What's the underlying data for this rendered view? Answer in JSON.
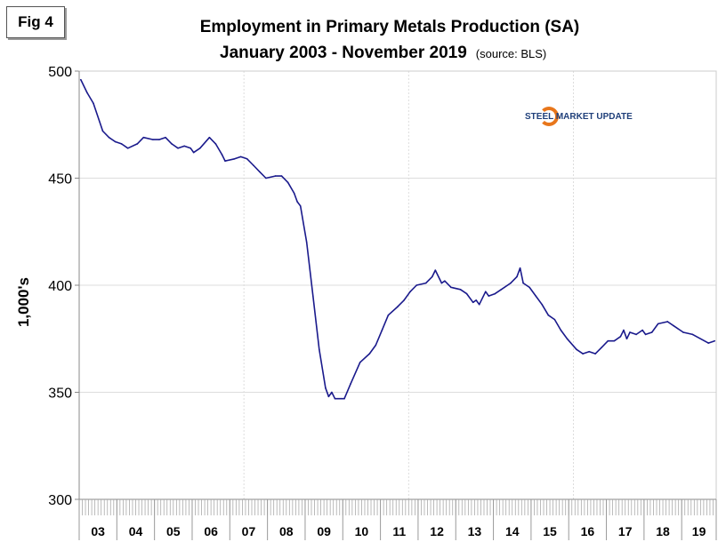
{
  "figure_label": "Fig 4",
  "logo_text": "STEEL MARKET UPDATE",
  "chart_data": {
    "type": "line",
    "title": "Employment in Primary Metals Production (SA)",
    "subtitle": "January 2003 - November 2019",
    "source": "(source: BLS)",
    "ylabel": "1,000's",
    "xlabel": "",
    "ylim": [
      300,
      500
    ],
    "yticks": [
      "300",
      "350",
      "400",
      "450",
      "500"
    ],
    "xtick_labels": [
      "03",
      "04",
      "05",
      "06",
      "07",
      "08",
      "09",
      "10",
      "11",
      "12",
      "13",
      "14",
      "15",
      "16",
      "17",
      "18",
      "19"
    ],
    "grid": true,
    "line_color": "#1a1a8c",
    "series": [
      {
        "x": [
          "2003-01",
          "2003-03",
          "2003-05",
          "2003-08",
          "2003-10",
          "2003-12",
          "2004-02",
          "2004-04",
          "2004-07",
          "2004-09",
          "2004-12",
          "2005-02",
          "2005-04",
          "2005-06",
          "2005-08",
          "2005-10",
          "2005-12",
          "2006-01",
          "2006-03",
          "2006-06",
          "2006-08",
          "2006-10",
          "2006-11",
          "2007-02",
          "2007-04",
          "2007-06",
          "2007-08",
          "2007-10",
          "2007-12",
          "2008-03",
          "2008-05",
          "2008-07",
          "2008-09",
          "2008-10",
          "2008-11",
          "2009-01",
          "2009-03",
          "2009-05",
          "2009-07",
          "2009-08",
          "2009-09",
          "2009-10",
          "2009-12",
          "2010-01",
          "2010-03",
          "2010-06",
          "2010-09",
          "2010-11",
          "2011-01",
          "2011-03",
          "2011-06",
          "2011-08",
          "2011-10",
          "2011-12",
          "2012-03",
          "2012-05",
          "2012-06",
          "2012-08",
          "2012-09",
          "2012-11",
          "2013-02",
          "2013-04",
          "2013-06",
          "2013-07",
          "2013-08",
          "2013-10",
          "2013-11",
          "2014-01",
          "2014-03",
          "2014-06",
          "2014-08",
          "2014-09",
          "2014-10",
          "2014-12",
          "2015-02",
          "2015-04",
          "2015-06",
          "2015-08",
          "2015-10",
          "2015-12",
          "2016-03",
          "2016-05",
          "2016-07",
          "2016-09",
          "2016-11",
          "2017-01",
          "2017-03",
          "2017-05",
          "2017-06",
          "2017-07",
          "2017-08",
          "2017-10",
          "2017-12",
          "2018-01",
          "2018-03",
          "2018-05",
          "2018-08",
          "2018-10",
          "2019-01",
          "2019-04",
          "2019-09",
          "2019-11"
        ],
        "values": [
          496,
          490,
          485,
          472,
          469,
          467,
          466,
          464,
          466,
          469,
          468,
          468,
          469,
          466,
          464,
          465,
          464,
          462,
          464,
          469,
          466,
          461,
          458,
          459,
          460,
          459,
          456,
          453,
          450,
          451,
          451,
          448,
          443,
          439,
          437,
          420,
          395,
          370,
          352,
          348,
          350,
          347,
          347,
          347,
          354,
          364,
          368,
          372,
          379,
          386,
          390,
          393,
          397,
          400,
          401,
          404,
          407,
          401,
          402,
          399,
          398,
          396,
          392,
          393,
          391,
          397,
          395,
          396,
          398,
          401,
          404,
          408,
          401,
          399,
          395,
          391,
          386,
          384,
          379,
          375,
          370,
          368,
          369,
          368,
          371,
          374,
          374,
          376,
          379,
          375,
          378,
          377,
          379,
          377,
          378,
          382,
          383,
          381,
          378,
          377,
          373,
          374
        ]
      }
    ]
  }
}
